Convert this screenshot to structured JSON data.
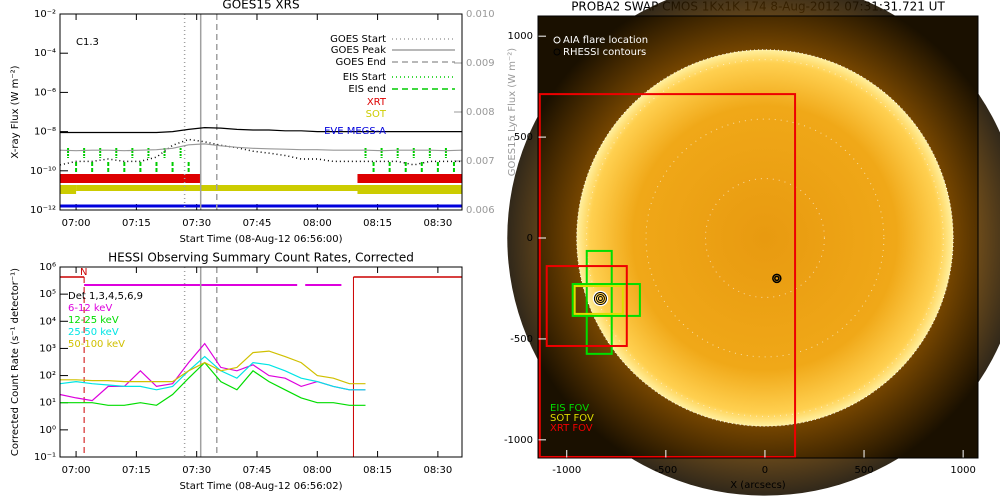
{
  "chart_data": [
    {
      "type": "line",
      "title": "GOES15 XRS",
      "xlabel": "Start Time (08-Aug-12 06:56:00)",
      "ylabel": "X-ray Flux (W m⁻²)",
      "y2label": "GOES15 Lyα Flux (W m⁻²)",
      "annotation": "C1.3",
      "log": true,
      "x": [
        "06:56",
        "07:00",
        "07:04",
        "07:08",
        "07:12",
        "07:16",
        "07:20",
        "07:24",
        "07:28",
        "07:32",
        "07:36",
        "07:40",
        "07:44",
        "07:48",
        "07:52",
        "07:56",
        "08:00",
        "08:04",
        "08:08",
        "08:12",
        "08:16",
        "08:20",
        "08:24",
        "08:28",
        "08:32",
        "08:36"
      ],
      "xlim": [
        "06:56",
        "08:36"
      ],
      "xticks": [
        "07:00",
        "07:15",
        "07:30",
        "07:45",
        "08:00",
        "08:15",
        "08:30"
      ],
      "ylim": [
        1e-12,
        0.01
      ],
      "yticks": [
        {
          "value": 1e-12,
          "label": "10⁻¹²"
        },
        {
          "value": 1e-10,
          "label": "10⁻¹⁰"
        },
        {
          "value": 1e-08,
          "label": "10⁻⁸"
        },
        {
          "value": 1e-06,
          "label": "10⁻⁶"
        },
        {
          "value": 0.0001,
          "label": "10⁻⁴"
        },
        {
          "value": 0.01,
          "label": "10⁻²"
        }
      ],
      "y2lim": [
        0.006,
        0.01
      ],
      "y2ticks": [
        0.006,
        0.007,
        0.008,
        0.009,
        {
          "value": 0.01,
          "label": "0.010"
        }
      ],
      "series": [
        {
          "color": "#000000",
          "style": "solid",
          "values": [
            9e-09,
            9e-09,
            9e-09,
            9e-09,
            9e-09,
            9e-09,
            9e-09,
            1e-08,
            1.3e-08,
            1.6e-08,
            1.5e-08,
            1.3e-08,
            1.2e-08,
            1.2e-08,
            1.1e-08,
            1.1e-08,
            1e-08,
            1e-08,
            1e-08,
            1e-08,
            1e-08,
            1e-08,
            1e-08,
            1e-08,
            1e-08,
            1e-08
          ]
        },
        {
          "color": "#000000",
          "style": "dotted",
          "values": [
            2e-10,
            3e-10,
            3e-10,
            4e-10,
            3e-10,
            3e-10,
            5e-10,
            2e-09,
            4e-09,
            3e-09,
            2e-09,
            1.5e-09,
            1e-09,
            8e-10,
            6e-10,
            4e-10,
            4e-10,
            3e-10,
            3e-10,
            3e-10,
            3e-10,
            3e-10,
            2e-10,
            3e-10,
            3e-10,
            3e-10
          ]
        },
        {
          "color": "#999999",
          "style": "solid",
          "axis": "y2",
          "values": [
            0.00722,
            0.00721,
            0.00722,
            0.00722,
            0.00721,
            0.00722,
            0.00723,
            0.00726,
            0.00733,
            0.00735,
            0.00731,
            0.00728,
            0.00726,
            0.00725,
            0.00724,
            0.00723,
            0.00723,
            0.00722,
            0.00722,
            0.00722,
            0.00721,
            0.00722,
            0.00722,
            0.00722,
            0.00721,
            0.00722
          ]
        }
      ],
      "markers": [
        {
          "name": "GOES Start",
          "x": "07:27",
          "color": "#a0a0a0",
          "style": "dotted"
        },
        {
          "name": "GOES Peak",
          "x": "07:31",
          "color": "#a0a0a0",
          "style": "solid"
        },
        {
          "name": "GOES End",
          "x": "07:35",
          "color": "#a0a0a0",
          "style": "dashed"
        }
      ],
      "observations": [
        {
          "name": "EIS Start",
          "color": "#00cc00",
          "style": "dotted",
          "times": [
            "06:58",
            "07:02",
            "07:06",
            "07:10",
            "07:14",
            "07:18",
            "07:22",
            "07:26",
            "08:12",
            "08:16",
            "08:20",
            "08:24",
            "08:28",
            "08:32"
          ]
        },
        {
          "name": "EIS end",
          "color": "#00cc00",
          "style": "dashed",
          "times": [
            "07:00",
            "07:04",
            "07:08",
            "07:12",
            "07:16",
            "07:20",
            "07:24",
            "07:28",
            "08:14",
            "08:18",
            "08:22",
            "08:26",
            "08:30",
            "08:34"
          ]
        },
        {
          "name": "XRT",
          "color": "#dd0000",
          "intervals": [
            [
              "06:56",
              "07:31"
            ],
            [
              "08:10",
              "08:36"
            ]
          ]
        },
        {
          "name": "SOT",
          "color": "#cccc00",
          "intervals": [
            [
              "06:56",
              "07:00"
            ],
            [
              "07:00",
              "08:10"
            ],
            [
              "08:10",
              "08:36"
            ]
          ]
        },
        {
          "name": "EVE MEGS-A",
          "color": "#0000dd",
          "intervals": [
            [
              "06:56",
              "08:36"
            ]
          ]
        }
      ]
    },
    {
      "type": "line",
      "title": "HESSI Observing Summary Count Rates, Corrected",
      "xlabel": "Start Time (08-Aug-12 06:56:02)",
      "ylabel": "Corrected Count Rate (s⁻¹ detector⁻¹)",
      "log": true,
      "legend_title": "Det 1,3,4,5,6,9",
      "x": [
        "06:56",
        "07:00",
        "07:04",
        "07:08",
        "07:12",
        "07:16",
        "07:20",
        "07:24",
        "07:28",
        "07:32",
        "07:36",
        "07:40",
        "07:44",
        "07:48",
        "07:52",
        "07:56",
        "08:00",
        "08:04",
        "08:08",
        "08:12",
        "08:16",
        "08:20",
        "08:24",
        "08:28",
        "08:32",
        "08:36"
      ],
      "xlim": [
        "06:56",
        "08:36"
      ],
      "xticks": [
        "07:00",
        "07:15",
        "07:30",
        "07:45",
        "08:00",
        "08:15",
        "08:30"
      ],
      "ylim": [
        0.1,
        1000000
      ],
      "yticks": [
        {
          "value": 0.1,
          "label": "10⁻¹"
        },
        {
          "value": 1,
          "label": "10⁰"
        },
        {
          "value": 10,
          "label": "10¹"
        },
        {
          "value": 100,
          "label": "10²"
        },
        {
          "value": 1000,
          "label": "10³"
        },
        {
          "value": 10000,
          "label": "10⁴"
        },
        {
          "value": 100000,
          "label": "10⁵"
        },
        {
          "value": 1000000,
          "label": "10⁶"
        }
      ],
      "series": [
        {
          "name": "6-12 keV",
          "color": "#dd00dd",
          "values": [
            20,
            15,
            12,
            40,
            40,
            150,
            40,
            50,
            300,
            1500,
            200,
            150,
            250,
            100,
            80,
            40,
            60,
            40,
            30,
            30,
            null,
            null,
            null,
            null,
            null,
            null
          ]
        },
        {
          "name": "12-25 keV",
          "color": "#00dd00",
          "values": [
            10,
            10,
            10,
            8,
            8,
            10,
            8,
            20,
            80,
            300,
            60,
            30,
            150,
            60,
            30,
            15,
            10,
            10,
            8,
            8,
            null,
            null,
            null,
            null,
            null,
            null
          ]
        },
        {
          "name": "25-50 keV",
          "color": "#00e5e5",
          "values": [
            50,
            60,
            50,
            45,
            40,
            40,
            30,
            40,
            150,
            500,
            150,
            80,
            300,
            250,
            150,
            80,
            60,
            40,
            30,
            30,
            null,
            null,
            null,
            null,
            null,
            null
          ]
        },
        {
          "name": "50-100 keV",
          "color": "#d0c000",
          "values": [
            70,
            70,
            65,
            65,
            60,
            60,
            60,
            60,
            150,
            300,
            150,
            200,
            700,
            800,
            500,
            300,
            100,
            80,
            50,
            50,
            null,
            null,
            null,
            null,
            null,
            null
          ]
        }
      ],
      "markers": [
        {
          "x": "07:27",
          "color": "#a0a0a0",
          "style": "dotted"
        },
        {
          "x": "07:31",
          "color": "#a0a0a0",
          "style": "solid"
        },
        {
          "x": "07:35",
          "color": "#a0a0a0",
          "style": "dashed"
        }
      ],
      "night": {
        "label": "N",
        "color": "#cc0000",
        "intervals": [
          [
            "06:56",
            "07:02"
          ],
          [
            "08:09",
            "08:36"
          ]
        ]
      },
      "attenuator": {
        "color": "#dd00dd",
        "intervals": [
          [
            "07:02",
            "07:55"
          ],
          [
            "07:57",
            "08:06"
          ]
        ]
      }
    },
    {
      "type": "image",
      "title": "PROBA2 SWAP CMOS 1Kx1K 174   8-Aug-2012 07:31:31.721 UT",
      "xlabel": "X (arcsecs)",
      "xlim": [
        -1145,
        1075
      ],
      "ylim": [
        -1090,
        1100
      ],
      "xticks": [
        -1000,
        -500,
        0,
        500,
        1000
      ],
      "yticks": [
        -1000,
        -500,
        0,
        500,
        1000
      ],
      "legend": [
        "AIA flare location",
        "RHESSI contours"
      ],
      "fov": [
        {
          "name": "EIS FOV",
          "color": "#00dd00",
          "boxes": [
            [
              -899,
              -773,
              -574,
              -64
            ],
            [
              -970,
              -631,
              -386,
              -228
            ]
          ]
        },
        {
          "name": "SOT FOV",
          "color": "#dddd00",
          "boxes": [
            [
              -960,
              -717,
              -376,
              -238
            ]
          ]
        },
        {
          "name": "XRT FOV",
          "color": "#ee0000",
          "boxes": [
            [
              -1136,
              152,
              -1085,
              713
            ],
            [
              -1101,
              -697,
              -535,
              -139
            ]
          ]
        }
      ],
      "flare": [
        -830,
        -300
      ],
      "contour": [
        60,
        -200
      ]
    }
  ]
}
